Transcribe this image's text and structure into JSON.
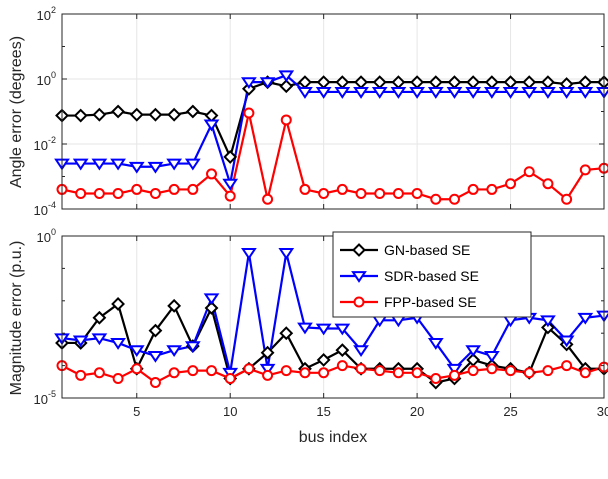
{
  "chart_data": [
    {
      "type": "line",
      "ylabel": "Angle error (degrees)",
      "xlabel": "",
      "yscale": "log",
      "ylim": [
        0.0001,
        100
      ],
      "xlim": [
        1,
        30
      ],
      "grid": true,
      "x_tick_labels": [],
      "y_ticks": [
        {
          "mant": "10",
          "exp": "2"
        },
        {
          "mant": "10",
          "exp": "0"
        },
        {
          "mant": "10",
          "exp": "-2"
        },
        {
          "mant": "10",
          "exp": "-4"
        }
      ],
      "x": [
        1,
        2,
        3,
        4,
        5,
        6,
        7,
        8,
        9,
        10,
        11,
        12,
        13,
        14,
        15,
        16,
        17,
        18,
        19,
        20,
        21,
        22,
        23,
        24,
        25,
        26,
        27,
        28,
        29,
        30
      ],
      "series": [
        {
          "name": "GN-based SE",
          "color": "#000000",
          "marker": "diamond",
          "values": [
            0.075,
            0.075,
            0.08,
            0.1,
            0.08,
            0.08,
            0.08,
            0.1,
            0.075,
            0.004,
            0.5,
            0.8,
            0.6,
            0.8,
            0.8,
            0.8,
            0.8,
            0.8,
            0.8,
            0.8,
            0.8,
            0.8,
            0.8,
            0.8,
            0.8,
            0.8,
            0.8,
            0.7,
            0.8,
            0.8
          ]
        },
        {
          "name": "SDR-based SE",
          "color": "#0000ff",
          "marker": "triangle-down",
          "values": [
            0.0025,
            0.0025,
            0.0025,
            0.0025,
            0.002,
            0.002,
            0.0025,
            0.0025,
            0.04,
            0.0006,
            0.8,
            0.8,
            1.3,
            0.4,
            0.4,
            0.4,
            0.4,
            0.4,
            0.4,
            0.4,
            0.4,
            0.4,
            0.4,
            0.4,
            0.4,
            0.4,
            0.4,
            0.4,
            0.4,
            0.4
          ]
        },
        {
          "name": "FPP-based SE",
          "color": "#ff0000",
          "marker": "circle",
          "values": [
            0.0004,
            0.0003,
            0.0003,
            0.0003,
            0.0004,
            0.0003,
            0.0004,
            0.0004,
            0.0012,
            0.00025,
            0.09,
            0.0002,
            0.055,
            0.0004,
            0.0003,
            0.0004,
            0.0003,
            0.0003,
            0.0003,
            0.0003,
            0.0002,
            0.0002,
            0.0004,
            0.0004,
            0.0006,
            0.0014,
            0.0006,
            0.0002,
            0.0016,
            0.0018
          ]
        }
      ]
    },
    {
      "type": "line",
      "ylabel": "Magnitude error (p.u.)",
      "xlabel": "bus index",
      "yscale": "log",
      "ylim": [
        1e-05,
        1
      ],
      "xlim": [
        1,
        30
      ],
      "grid": true,
      "x_tick_labels": [
        "5",
        "10",
        "15",
        "20",
        "25",
        "30"
      ],
      "y_ticks": [
        {
          "mant": "10",
          "exp": "0"
        },
        {
          "mant": "10",
          "exp": "-5"
        }
      ],
      "legend_position": "top-right",
      "x": [
        1,
        2,
        3,
        4,
        5,
        6,
        7,
        8,
        9,
        10,
        11,
        12,
        13,
        14,
        15,
        16,
        17,
        18,
        19,
        20,
        21,
        22,
        23,
        24,
        25,
        26,
        27,
        28,
        29,
        30
      ],
      "series": [
        {
          "name": "GN-based SE",
          "color": "#000000",
          "marker": "diamond",
          "values": [
            0.0005,
            0.0005,
            0.003,
            0.008,
            8e-05,
            0.0012,
            0.007,
            0.0004,
            0.006,
            4e-05,
            8e-05,
            0.00025,
            0.001,
            8e-05,
            0.00015,
            0.0003,
            8e-05,
            8e-05,
            8e-05,
            8e-05,
            3e-05,
            4e-05,
            0.00015,
            0.0001,
            8e-05,
            6e-05,
            0.0015,
            0.00045,
            8e-05,
            8e-05
          ]
        },
        {
          "name": "SDR-based SE",
          "color": "#0000ff",
          "marker": "triangle-down",
          "values": [
            0.0007,
            0.0006,
            0.0007,
            0.0005,
            0.0003,
            0.0002,
            0.0003,
            0.0004,
            0.012,
            6e-05,
            0.3,
            8e-05,
            0.3,
            0.0015,
            0.0014,
            0.0014,
            0.0003,
            0.0025,
            0.0025,
            0.003,
            0.0005,
            8e-05,
            0.0003,
            0.0002,
            0.0025,
            0.003,
            0.0025,
            0.0006,
            0.003,
            0.0035
          ]
        },
        {
          "name": "FPP-based SE",
          "color": "#ff0000",
          "marker": "circle",
          "values": [
            0.0001,
            5e-05,
            6e-05,
            4e-05,
            8e-05,
            3e-05,
            6e-05,
            7e-05,
            7e-05,
            4e-05,
            8e-05,
            5e-05,
            7e-05,
            6e-05,
            6e-05,
            0.0001,
            8e-05,
            7e-05,
            6e-05,
            6e-05,
            4e-05,
            5e-05,
            7e-05,
            8e-05,
            7e-05,
            6e-05,
            7e-05,
            0.0001,
            6e-05,
            9e-05
          ]
        }
      ]
    }
  ]
}
